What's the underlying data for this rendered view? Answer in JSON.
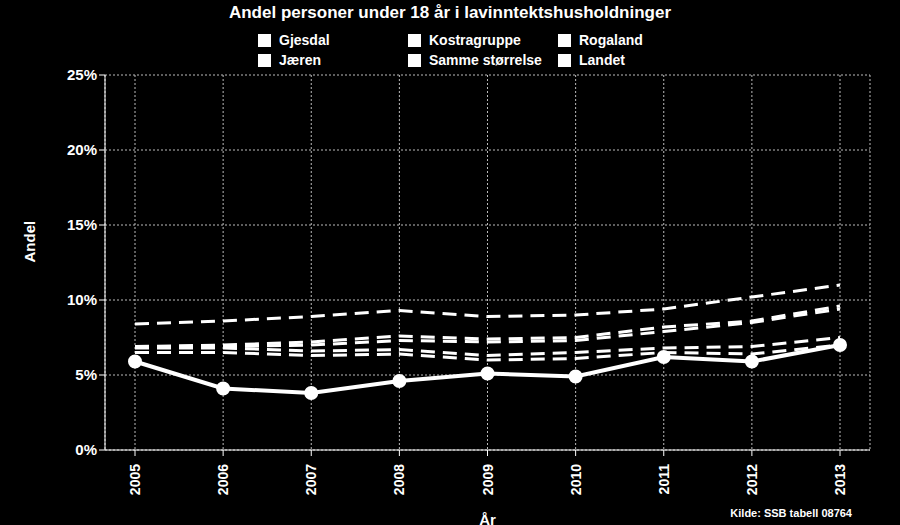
{
  "chart_data": {
    "type": "line",
    "title": "Andel personer under 18 år i lavinntektshusholdninger",
    "x_label": "År",
    "y_label": "Andel",
    "annotation": "Kilde: SSB tabell 08764",
    "categories": [
      "2005",
      "2006",
      "2007",
      "2008",
      "2009",
      "2010",
      "2011",
      "2012",
      "2013"
    ],
    "ylim": [
      0,
      25
    ],
    "yticks": [
      {
        "value": 0,
        "label": "0%"
      },
      {
        "value": 5,
        "label": "5%"
      },
      {
        "value": 10,
        "label": "10%"
      },
      {
        "value": 15,
        "label": "15%"
      },
      {
        "value": 20,
        "label": "20%"
      },
      {
        "value": 25,
        "label": "25%"
      }
    ],
    "grid": true,
    "legend": "top",
    "series": [
      {
        "name": "Gjesdal",
        "color": "#ffffff",
        "line_style": "solid",
        "marker": "circle",
        "values": [
          5.9,
          4.1,
          3.8,
          4.6,
          5.1,
          4.9,
          6.2,
          5.9,
          7.0
        ]
      },
      {
        "name": "Jæren",
        "color": "#ffffff",
        "line_style": "dashed",
        "marker": "none",
        "values": [
          6.5,
          6.5,
          6.3,
          6.4,
          6.0,
          6.1,
          6.5,
          6.4,
          7.0
        ]
      },
      {
        "name": "Kostragruppe",
        "color": "#ffffff",
        "line_style": "dashed",
        "marker": "none",
        "values": [
          6.9,
          7.0,
          7.2,
          7.6,
          7.4,
          7.5,
          8.2,
          8.6,
          9.6
        ]
      },
      {
        "name": "Samme størrelse",
        "color": "#ffffff",
        "line_style": "dashed",
        "marker": "none",
        "values": [
          6.8,
          6.8,
          6.6,
          6.7,
          6.3,
          6.5,
          6.8,
          6.9,
          7.5
        ]
      },
      {
        "name": "Rogaland",
        "color": "#ffffff",
        "line_style": "dashed",
        "marker": "none",
        "values": [
          6.9,
          6.9,
          7.0,
          7.3,
          7.2,
          7.3,
          7.9,
          8.5,
          9.4
        ]
      },
      {
        "name": "Landet",
        "color": "#ffffff",
        "line_style": "dashed",
        "marker": "none",
        "values": [
          8.4,
          8.6,
          8.9,
          9.3,
          8.9,
          9.0,
          9.4,
          10.2,
          11.0
        ]
      }
    ]
  }
}
